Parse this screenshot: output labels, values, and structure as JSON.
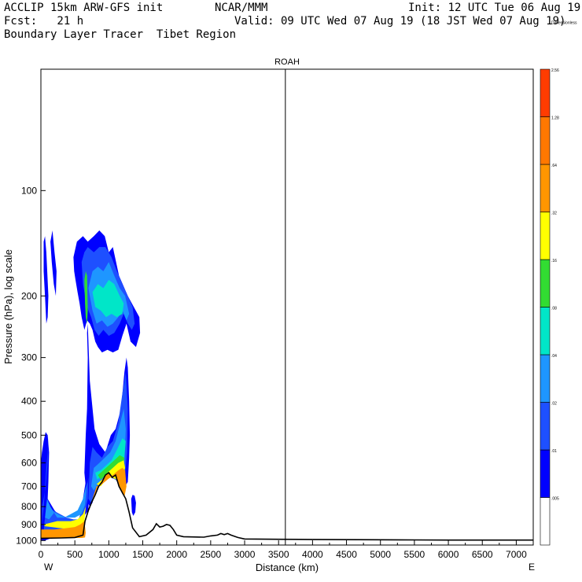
{
  "header": {
    "line1_left": "ACCLIP 15km ARW-GFS init",
    "line1_mid": "NCAR/MMM",
    "line1_right": "Init: 12 UTC Tue 06 Aug 19",
    "line2_left": "Fcst:   21 h",
    "line2_right": "Valid: 09 UTC Wed 07 Aug 19 (18 JST Wed 07 Aug 19)",
    "line3_left": "Boundary Layer Tracer  Tibet Region"
  },
  "chart_data": {
    "type": "cross-section",
    "title": "ROAH",
    "xlabel": "Distance (km)",
    "ylabel": "Pressure (hPa), log scale",
    "xlim": [
      0,
      7250
    ],
    "ylim": [
      1030,
      45
    ],
    "yscale": "log",
    "x_ticks": [
      0,
      500,
      1000,
      1500,
      2000,
      2500,
      3000,
      3500,
      4000,
      4500,
      5000,
      5500,
      6000,
      6500,
      7000
    ],
    "x_tick_labels": [
      "0",
      "500",
      "1000",
      "1500",
      "2000",
      "2500",
      "3000",
      "3500",
      "4000",
      "4500",
      "5000",
      "5500",
      "6000",
      "6500",
      "7000"
    ],
    "y_ticks": [
      100,
      200,
      300,
      400,
      500,
      600,
      700,
      800,
      900,
      1000
    ],
    "y_tick_labels": [
      "100",
      "200",
      "300",
      "400",
      "500",
      "600",
      "700",
      "800",
      "900",
      "1000"
    ],
    "left_end_label": "W",
    "right_end_label": "E",
    "vertical_marker_km": 3600,
    "terrain": {
      "x": [
        0,
        300,
        500,
        620,
        650,
        700,
        750,
        800,
        850,
        900,
        950,
        1000,
        1050,
        1100,
        1150,
        1200,
        1250,
        1300,
        1350,
        1450,
        1550,
        1650,
        1700,
        1750,
        1800,
        1850,
        1900,
        1950,
        2000,
        2100,
        2400,
        2500,
        2600,
        2650,
        2700,
        2750,
        2800,
        2900,
        3000,
        3500,
        4000,
        5000,
        5500,
        6000,
        7250
      ],
      "p": [
        985,
        983,
        980,
        965,
        880,
        820,
        775,
        740,
        700,
        680,
        650,
        640,
        660,
        650,
        700,
        730,
        760,
        830,
        920,
        975,
        965,
        930,
        895,
        915,
        910,
        900,
        905,
        930,
        965,
        975,
        978,
        970,
        965,
        955,
        962,
        955,
        965,
        980,
        990,
        992,
        993,
        995,
        996,
        997,
        997
      ]
    },
    "colorbar": {
      "levels": [
        ".005",
        ".01",
        ".02",
        ".04",
        ".08",
        ".16",
        ".32",
        ".64",
        "1.28",
        "2.56",
        "Dimensionless"
      ],
      "colors": [
        "#ffffff",
        "#0000ff",
        "#1e50ff",
        "#1e96ff",
        "#00e6c8",
        "#32dc32",
        "#ffff00",
        "#ff9600",
        "#ff7800",
        "#ff3c00"
      ]
    },
    "fields": [
      {
        "level": 0.01,
        "color": "#0000ff",
        "x": [
          50,
          90,
          110,
          120,
          100,
          70,
          40,
          15,
          0,
          0
        ],
        "p": [
          1000,
          840,
          680,
          560,
          500,
          490,
          520,
          560,
          600,
          1000
        ]
      },
      {
        "level": 0.01,
        "color": "#0000ff",
        "x": [
          0,
          60,
          120,
          200,
          300,
          400,
          500,
          560,
          620,
          680,
          720,
          700,
          600,
          500,
          400,
          300,
          200,
          100,
          30,
          0
        ],
        "p": [
          1000,
          1000,
          990,
          980,
          970,
          960,
          940,
          880,
          760,
          640,
          600,
          820,
          870,
          880,
          880,
          860,
          820,
          760,
          700,
          700
        ]
      },
      {
        "level": 0.01,
        "color": "#0000ff",
        "x": [
          640,
          660,
          680,
          690,
          680,
          690,
          720,
          790,
          860,
          950,
          1030,
          1100,
          1180,
          1230,
          1260,
          1280,
          1300,
          1310,
          1300,
          1280,
          1240,
          1200,
          1150,
          1120,
          1050,
          980,
          880,
          800,
          760,
          720,
          680
        ],
        "p": [
          640,
          500,
          420,
          300,
          255,
          240,
          350,
          480,
          530,
          560,
          500,
          480,
          420,
          330,
          300,
          320,
          400,
          500,
          580,
          680,
          700,
          710,
          700,
          660,
          650,
          660,
          680,
          720,
          780,
          800,
          770
        ]
      },
      {
        "level": 0.01,
        "color": "#0000ff",
        "x": [
          1330,
          1350,
          1380,
          1400,
          1390,
          1360,
          1340
        ],
        "p": [
          760,
          740,
          745,
          780,
          830,
          850,
          830
        ]
      },
      {
        "level": 0.01,
        "color": "#0000ff",
        "x": [
          40,
          60,
          80,
          110,
          100,
          80,
          60,
          40
        ],
        "p": [
          140,
          135,
          150,
          200,
          230,
          240,
          200,
          170
        ]
      },
      {
        "level": 0.01,
        "color": "#0000ff",
        "x": [
          140,
          170,
          200,
          230,
          220,
          190,
          160
        ],
        "p": [
          140,
          130,
          150,
          170,
          200,
          185,
          160
        ]
      },
      {
        "level": 0.01,
        "color": "#0000ff",
        "x": [
          480,
          530,
          620,
          690,
          780,
          860,
          940,
          1000,
          1060,
          1150,
          1280,
          1450,
          1460,
          1400,
          1320,
          1260,
          1200,
          1140,
          1060,
          980,
          900,
          840,
          800,
          760,
          720,
          680,
          640,
          600,
          570,
          540,
          510,
          490
        ],
        "p": [
          155,
          140,
          135,
          140,
          135,
          130,
          135,
          150,
          145,
          175,
          200,
          230,
          255,
          280,
          270,
          240,
          260,
          285,
          290,
          285,
          290,
          280,
          270,
          250,
          240,
          235,
          250,
          230,
          210,
          195,
          180,
          170
        ]
      },
      {
        "level": 0.02,
        "color": "#1e50ff",
        "x": [
          20,
          50,
          80,
          100,
          110,
          100,
          70,
          40,
          20
        ],
        "p": [
          900,
          760,
          620,
          560,
          500,
          600,
          700,
          760,
          800
        ]
      },
      {
        "level": 0.02,
        "color": "#1e50ff",
        "x": [
          40,
          140,
          240,
          340,
          440,
          540,
          610,
          660,
          700,
          690,
          640,
          580,
          480,
          380,
          280,
          180,
          80
        ],
        "p": [
          940,
          950,
          945,
          930,
          910,
          880,
          820,
          740,
          660,
          760,
          850,
          870,
          870,
          860,
          840,
          820,
          790
        ]
      },
      {
        "level": 0.02,
        "color": "#1e50ff",
        "x": [
          700,
          720,
          760,
          820,
          900,
          980,
          1060,
          1140,
          1200,
          1250,
          1280,
          1270,
          1240,
          1200,
          1150,
          1100,
          1020,
          940,
          860,
          780,
          740
        ],
        "p": [
          760,
          600,
          540,
          560,
          580,
          540,
          520,
          460,
          380,
          330,
          420,
          560,
          640,
          680,
          690,
          670,
          660,
          670,
          700,
          750,
          780
        ]
      },
      {
        "level": 0.02,
        "color": "#1e50ff",
        "x": [
          600,
          640,
          690,
          780,
          860,
          950,
          1040,
          1120,
          1200,
          1280,
          1350,
          1380,
          1340,
          1280,
          1220,
          1160,
          1080,
          1000,
          920,
          850,
          790,
          740,
          700,
          660,
          620
        ],
        "p": [
          160,
          150,
          145,
          150,
          145,
          145,
          155,
          170,
          185,
          200,
          215,
          240,
          250,
          240,
          225,
          240,
          255,
          260,
          250,
          260,
          250,
          230,
          220,
          205,
          185
        ]
      },
      {
        "level": 0.04,
        "color": "#1e96ff",
        "x": [
          60,
          90,
          140,
          240,
          340,
          440,
          540,
          620,
          680,
          650,
          600,
          500,
          400,
          300,
          200,
          120
        ],
        "p": [
          860,
          760,
          800,
          860,
          860,
          840,
          820,
          760,
          680,
          790,
          840,
          860,
          860,
          850,
          830,
          870
        ]
      },
      {
        "level": 0.04,
        "color": "#1e96ff",
        "x": [
          740,
          780,
          860,
          940,
          1020,
          1100,
          1170,
          1220,
          1250,
          1230,
          1200,
          1150,
          1100,
          1000,
          920,
          840,
          780
        ],
        "p": [
          700,
          620,
          600,
          580,
          560,
          520,
          460,
          420,
          480,
          600,
          660,
          680,
          660,
          650,
          660,
          690,
          720
        ]
      },
      {
        "level": 0.04,
        "color": "#1e96ff",
        "x": [
          700,
          760,
          840,
          920,
          1000,
          1080,
          1160,
          1240,
          1300,
          1260,
          1200,
          1140,
          1060,
          980,
          900,
          820,
          760
        ],
        "p": [
          190,
          170,
          165,
          170,
          160,
          175,
          190,
          200,
          225,
          235,
          220,
          230,
          240,
          245,
          235,
          240,
          220
        ]
      },
      {
        "level": 0.08,
        "color": "#00e6c8",
        "x": [
          800,
          880,
          960,
          1040,
          1120,
          1200,
          1250,
          1220,
          1150,
          1070,
          990,
          900,
          830
        ],
        "p": [
          640,
          630,
          610,
          590,
          550,
          510,
          520,
          600,
          650,
          640,
          630,
          650,
          670
        ]
      },
      {
        "level": 0.08,
        "color": "#00e6c8",
        "x": [
          760,
          840,
          920,
          1000,
          1080,
          1160,
          1220,
          1200,
          1120,
          1040,
          960,
          880,
          800
        ],
        "p": [
          195,
          185,
          190,
          180,
          185,
          200,
          210,
          225,
          230,
          225,
          230,
          220,
          215
        ]
      },
      {
        "level": 0.16,
        "color": "#32dc32",
        "x": [
          640,
          660,
          680,
          690,
          680,
          660,
          650
        ],
        "p": [
          180,
          170,
          175,
          220,
          240,
          230,
          210
        ]
      },
      {
        "level": 0.16,
        "color": "#32dc32",
        "x": [
          840,
          920,
          1000,
          1080,
          1160,
          1230,
          1200,
          1120,
          1040,
          960,
          880
        ],
        "p": [
          650,
          630,
          610,
          590,
          570,
          580,
          640,
          650,
          640,
          650,
          670
        ]
      },
      {
        "level": 0.32,
        "color": "#ffff00",
        "x": [
          40,
          140,
          240,
          340,
          440,
          540,
          620,
          660,
          640,
          560,
          460,
          360,
          260,
          160,
          60
        ],
        "p": [
          900,
          890,
          880,
          880,
          880,
          870,
          840,
          800,
          880,
          910,
          920,
          925,
          920,
          915,
          910
        ]
      },
      {
        "level": 0.32,
        "color": "#ffff00",
        "x": [
          820,
          900,
          980,
          1060,
          1140,
          1220,
          1240,
          1200,
          1120,
          1040,
          960,
          880
        ],
        "p": [
          690,
          670,
          640,
          620,
          600,
          590,
          620,
          660,
          670,
          660,
          670,
          700
        ]
      },
      {
        "level": 0.64,
        "color": "#ff9600",
        "x": [
          0,
          100,
          200,
          300,
          400,
          500,
          580,
          640,
          660,
          650,
          600,
          500,
          400,
          300,
          200,
          100,
          0
        ],
        "p": [
          930,
          930,
          930,
          925,
          920,
          915,
          900,
          880,
          950,
          980,
          983,
          983,
          984,
          984,
          985,
          985,
          985
        ]
      },
      {
        "level": 0.64,
        "color": "#ff9600",
        "x": [
          700,
          760,
          820,
          900,
          980,
          1060,
          1140,
          1200,
          1240,
          1260,
          1230,
          1200,
          1150,
          1100,
          1050,
          1000,
          950,
          900,
          850,
          800,
          750
        ],
        "p": [
          860,
          760,
          700,
          690,
          670,
          650,
          630,
          620,
          630,
          700,
          750,
          730,
          700,
          650,
          660,
          640,
          650,
          680,
          700,
          740,
          775
        ]
      }
    ]
  }
}
